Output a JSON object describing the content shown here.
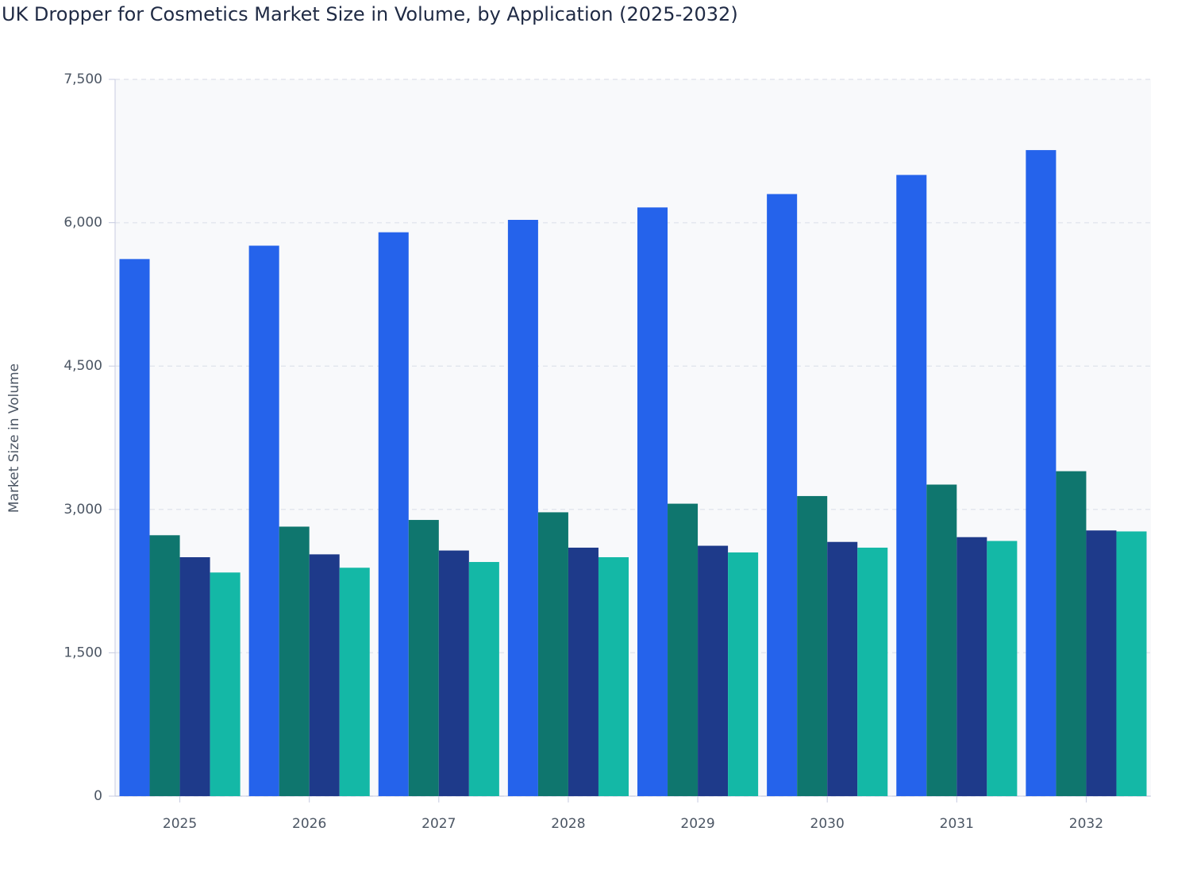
{
  "chart_data": {
    "type": "bar",
    "title": "UK Dropper for Cosmetics Market Size in Volume, by Application (2025-2032)",
    "y_label": "Market Size in Volume",
    "categories": [
      "2025",
      "2026",
      "2027",
      "2028",
      "2029",
      "2030",
      "2031",
      "2032"
    ],
    "series": [
      {
        "color": "#2563eb",
        "values": [
          5620,
          5760,
          5900,
          6030,
          6160,
          6300,
          6500,
          6760
        ]
      },
      {
        "color": "#0f766e",
        "values": [
          2730,
          2820,
          2890,
          2970,
          3060,
          3140,
          3260,
          3400
        ]
      },
      {
        "color": "#1e3a8a",
        "values": [
          2500,
          2530,
          2570,
          2600,
          2620,
          2660,
          2710,
          2780
        ]
      },
      {
        "color": "#14b8a6",
        "values": [
          2340,
          2390,
          2450,
          2500,
          2550,
          2600,
          2670,
          2770
        ]
      }
    ],
    "ylim": [
      0,
      7500
    ],
    "yticks": [
      0,
      {
        "value": 1500,
        "label": "1,500"
      },
      {
        "value": 3000,
        "label": "3,000"
      },
      {
        "value": 4500,
        "label": "4,500"
      },
      {
        "value": 6000,
        "label": "6,000"
      },
      {
        "value": 7500,
        "label": "7,500"
      }
    ],
    "grid": true
  }
}
